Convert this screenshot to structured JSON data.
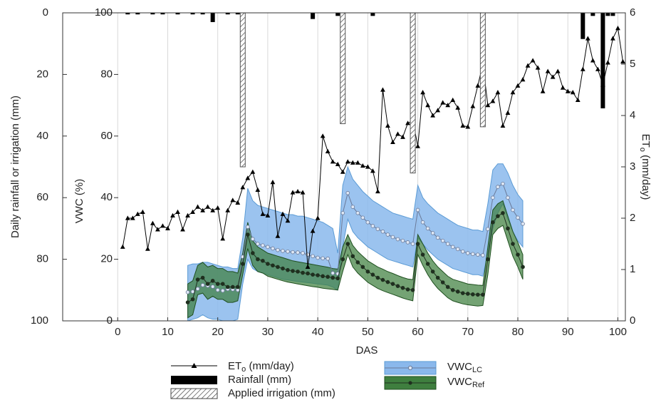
{
  "chart_data": [
    {
      "type": "bar",
      "xlabel": "DAS",
      "ylabel": "Daily rainfall or irrigation (mm)",
      "xlim": [
        -11,
        101.5
      ],
      "xticks": [
        0,
        10,
        20,
        30,
        40,
        50,
        60,
        70,
        80,
        90,
        100
      ],
      "grid": "x",
      "ylim": [
        0,
        100
      ],
      "y_inverted": true,
      "yticks": [
        0,
        20,
        40,
        60,
        80,
        100
      ],
      "y_side": "left",
      "series": [
        {
          "name": "Rainfall (mm)",
          "color": "#000000",
          "pattern": "solid",
          "x": [
            2,
            4,
            7,
            9,
            12,
            15,
            17,
            19,
            22,
            24,
            39,
            44,
            45,
            51,
            93,
            95,
            97,
            98,
            99
          ],
          "values": [
            0.5,
            0.5,
            0.5,
            0.5,
            0.5,
            0.5,
            0.5,
            3,
            0.5,
            0.5,
            2,
            1,
            1,
            1,
            8.5,
            1,
            31,
            1,
            1
          ]
        },
        {
          "name": "Applied irrigation (mm)",
          "color": "#555555",
          "pattern": "hatch",
          "x": [
            25,
            45,
            59,
            73
          ],
          "values": [
            50,
            36,
            52,
            37
          ]
        }
      ]
    },
    {
      "type": "line",
      "ylabel": {
        "main": "ET",
        "sub": "o",
        "rest": " (mm/day)"
      },
      "xlim": [
        -11,
        101.5
      ],
      "ylim": [
        0,
        6
      ],
      "yticks": [
        0,
        1,
        2,
        3,
        4,
        5,
        6
      ],
      "y_side": "right",
      "series": [
        {
          "name": "ET",
          "name_sub": "o",
          "name_rest": " (mm/day)",
          "color": "#000000",
          "marker": "triangle",
          "x": [
            1,
            2,
            3,
            4,
            5,
            6,
            7,
            8,
            9,
            10,
            11,
            12,
            13,
            14,
            15,
            16,
            17,
            18,
            19,
            20,
            21,
            22,
            23,
            24,
            25,
            26,
            27,
            28,
            29,
            30,
            31,
            32,
            33,
            34,
            35,
            36,
            37,
            38,
            39,
            40,
            41,
            42,
            43,
            44,
            45,
            46,
            47,
            48,
            49,
            50,
            51,
            52,
            53,
            54,
            55,
            56,
            57,
            58,
            59,
            60,
            61,
            62,
            63,
            64,
            65,
            66,
            67,
            68,
            69,
            70,
            71,
            72,
            73,
            74,
            75,
            76,
            77,
            78,
            79,
            80,
            81,
            82,
            83,
            84,
            85,
            86,
            87,
            88,
            89,
            90,
            91,
            92,
            93,
            94,
            95,
            96,
            97,
            98,
            99,
            100,
            101
          ],
          "values": [
            1.44,
            2.0,
            2.0,
            2.08,
            2.12,
            1.4,
            1.9,
            1.78,
            1.85,
            1.8,
            2.05,
            2.12,
            1.78,
            2.05,
            2.12,
            2.22,
            2.15,
            2.22,
            2.15,
            2.2,
            1.6,
            2.15,
            2.35,
            2.3,
            2.6,
            2.78,
            2.9,
            2.55,
            2.08,
            2.05,
            2.7,
            1.65,
            2.08,
            1.95,
            2.5,
            2.52,
            2.5,
            1.05,
            1.75,
            2.0,
            3.6,
            3.3,
            3.1,
            3.05,
            2.9,
            3.1,
            3.08,
            3.08,
            3.02,
            3.0,
            2.92,
            2.52,
            4.5,
            3.8,
            3.48,
            3.64,
            3.58,
            3.85,
            3.9,
            3.4,
            4.45,
            4.2,
            4.0,
            4.1,
            4.25,
            4.2,
            4.3,
            4.15,
            3.8,
            3.78,
            4.18,
            4.58,
            5.0,
            4.2,
            4.28,
            4.45,
            3.8,
            4.05,
            4.45,
            4.58,
            4.7,
            4.97,
            5.07,
            4.93,
            4.47,
            4.86,
            4.75,
            4.86,
            4.54,
            4.47,
            4.45,
            4.3,
            4.9,
            5.5,
            5.07,
            4.9,
            4.6,
            5.03,
            5.5,
            5.7,
            5.05
          ]
        }
      ]
    },
    {
      "type": "band",
      "ylabel": "VWC (%)",
      "xlim": [
        -11,
        101.5
      ],
      "ylim": [
        0,
        100
      ],
      "yticks": [
        0,
        20,
        40,
        60,
        80,
        100
      ],
      "y_side": "inner-left",
      "series": [
        {
          "name": "VWC",
          "name_sub": "LC",
          "color": "#8ab8ec",
          "edge_color": "#5b9bd5",
          "line_color": "#6b7a99",
          "marker": "open-circle",
          "x": [
            14,
            15,
            16,
            17,
            18,
            19,
            20,
            21,
            22,
            23,
            24,
            25,
            26,
            27,
            28,
            29,
            30,
            31,
            32,
            33,
            34,
            35,
            36,
            37,
            38,
            39,
            40,
            41,
            42,
            43,
            44,
            45,
            46,
            47,
            48,
            49,
            50,
            51,
            52,
            53,
            54,
            55,
            56,
            57,
            58,
            59,
            60,
            61,
            62,
            63,
            64,
            65,
            66,
            67,
            68,
            69,
            70,
            71,
            72,
            73,
            74,
            75,
            76,
            77,
            78,
            79,
            80,
            81
          ],
          "values": [
            9.3,
            9.5,
            10.4,
            11.6,
            11.4,
            11.1,
            10.0,
            9.8,
            10.3,
            10.2,
            10.0,
            20.8,
            30.5,
            26.6,
            25,
            24.5,
            24,
            23.5,
            23,
            22.7,
            22.5,
            22.3,
            22.2,
            22,
            21.5,
            21,
            20.5,
            20.3,
            20.2,
            15.5,
            15.3,
            35,
            41.5,
            37,
            35,
            33.5,
            32,
            30.8,
            29.8,
            29,
            28,
            27.2,
            26.5,
            26,
            25.5,
            25,
            36,
            32,
            30,
            28.5,
            27,
            26,
            25,
            24,
            23.3,
            22.5,
            22,
            21.7,
            21.5,
            21.3,
            29.8,
            40,
            43.5,
            44.5,
            40,
            36,
            33.5,
            31.5
          ],
          "upper": [
            18,
            18.5,
            18.5,
            19,
            19,
            18.5,
            18,
            17.5,
            17.5,
            17,
            17,
            27,
            43,
            39,
            37.5,
            37,
            36.5,
            36,
            35.5,
            35,
            34.5,
            34.5,
            34,
            34,
            33.5,
            33,
            32.5,
            32,
            31,
            30,
            22,
            44,
            50,
            46,
            44,
            42,
            40.5,
            39,
            38,
            37,
            36,
            35,
            34.5,
            34,
            33.5,
            33,
            44,
            40,
            38,
            36.5,
            35,
            34,
            33,
            32,
            31,
            30.5,
            30,
            29.5,
            29.5,
            29,
            38,
            49,
            51,
            51,
            48,
            44,
            41,
            39
          ],
          "lower": [
            0,
            0.5,
            1,
            2,
            1,
            0.5,
            0.5,
            0,
            0,
            0,
            0.5,
            12,
            20,
            17,
            16,
            15.5,
            15,
            14.5,
            14,
            13.5,
            13.3,
            13,
            12.8,
            12.6,
            12.4,
            12.2,
            12,
            11.8,
            11.6,
            11,
            10,
            24,
            33,
            29,
            27,
            25.5,
            24,
            23,
            22,
            21,
            20,
            19.5,
            19,
            18.5,
            18,
            17.5,
            27,
            25,
            23,
            21.5,
            20,
            19,
            18,
            17,
            16.5,
            16,
            15.5,
            15,
            15,
            14.5,
            22,
            30,
            35,
            38,
            33,
            29,
            26,
            24
          ]
        },
        {
          "name": "VWC",
          "name_sub": "Ref",
          "color": "#3f7f3f",
          "edge_color": "#1f4f1f",
          "line_color": "#1f2f1f",
          "marker": "filled-circle",
          "x": [
            14,
            15,
            16,
            17,
            18,
            19,
            20,
            21,
            22,
            23,
            24,
            25,
            26,
            27,
            28,
            29,
            30,
            31,
            32,
            33,
            34,
            35,
            36,
            37,
            38,
            39,
            40,
            41,
            42,
            43,
            44,
            45,
            46,
            47,
            48,
            49,
            50,
            51,
            52,
            53,
            54,
            55,
            56,
            57,
            58,
            59,
            60,
            61,
            62,
            63,
            64,
            65,
            66,
            67,
            68,
            69,
            70,
            71,
            72,
            73,
            74,
            75,
            76,
            77,
            78,
            79,
            80,
            81
          ],
          "values": [
            6,
            7,
            13.4,
            14,
            12,
            13,
            12,
            12,
            11,
            11,
            11,
            18.5,
            28,
            22,
            20,
            19.5,
            18.5,
            18,
            17.5,
            17,
            16.5,
            16.2,
            16,
            15.6,
            15.4,
            15,
            14.8,
            14.5,
            14.3,
            14,
            13.8,
            20,
            25,
            21,
            19,
            17.5,
            16,
            15,
            14,
            13.3,
            12.6,
            12,
            11.3,
            10.7,
            10.2,
            10,
            25,
            21.5,
            18.5,
            16,
            14,
            12.5,
            11,
            10,
            9.5,
            9,
            8.8,
            8.6,
            8.5,
            8.5,
            20,
            32,
            34,
            35,
            30,
            25,
            21.5,
            17.5
          ],
          "upper": [
            12,
            13,
            18,
            19,
            17.5,
            18,
            17,
            17,
            16,
            16,
            15.5,
            22,
            32,
            26,
            24,
            23,
            22,
            21.5,
            21,
            20.5,
            20,
            19.5,
            19.2,
            18.9,
            18.6,
            18.3,
            18,
            17.7,
            17.4,
            17,
            16.8,
            24,
            28,
            24.5,
            22.5,
            21,
            19.5,
            18.5,
            17.5,
            16.8,
            16,
            15.4,
            14.7,
            14.1,
            13.6,
            13.4,
            28,
            25,
            22,
            19.5,
            17.5,
            16,
            14.5,
            13.5,
            13,
            12.5,
            12,
            11.8,
            11.6,
            11.5,
            24,
            36,
            38,
            39,
            34,
            29,
            25.5,
            21.5
          ],
          "lower": [
            1,
            2,
            8.5,
            9,
            7,
            8,
            7,
            7,
            6,
            6,
            6.5,
            15,
            23.5,
            18,
            16,
            15.5,
            14.5,
            14,
            13.5,
            13,
            12.6,
            12.3,
            12,
            11.7,
            11.4,
            11.1,
            10.9,
            10.6,
            10.4,
            10.2,
            10,
            16,
            21.5,
            17.5,
            15.5,
            14,
            12.5,
            11.5,
            10.5,
            9.8,
            9.2,
            8.6,
            8,
            7.4,
            6.9,
            6.5,
            21.5,
            18,
            15,
            12.5,
            10.5,
            9,
            7.5,
            6.5,
            6,
            5.5,
            5.2,
            5,
            4.8,
            5,
            15,
            28,
            30,
            31,
            26,
            21,
            17.5,
            13.5
          ]
        }
      ]
    }
  ]
}
